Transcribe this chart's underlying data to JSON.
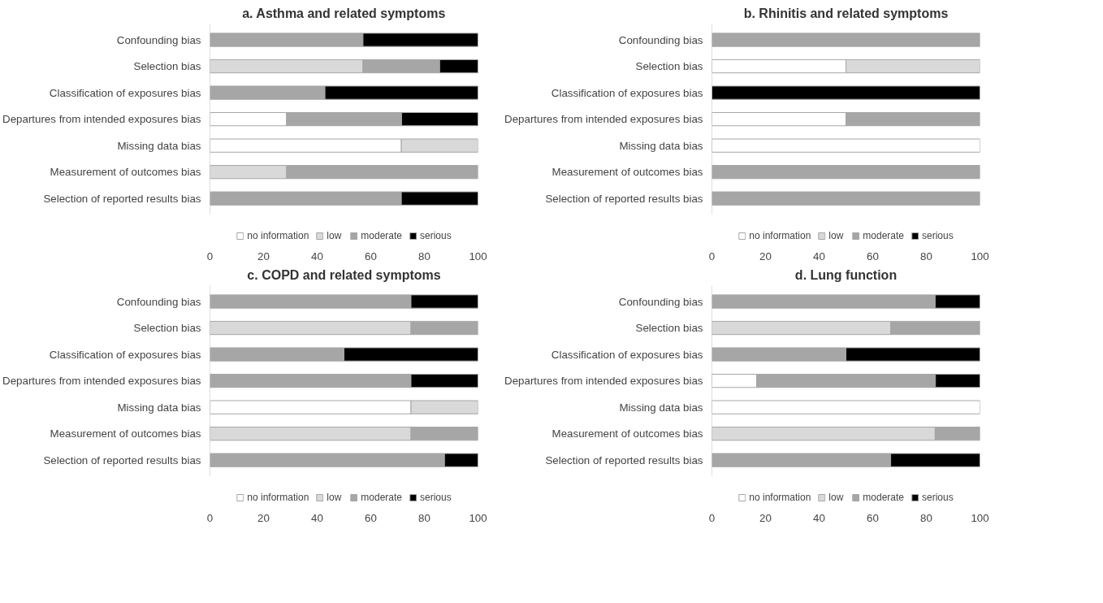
{
  "chart_data": [
    {
      "type": "bar",
      "orientation": "horizontal",
      "stacked": true,
      "title": "a. Asthma and related symptoms",
      "categories": [
        "Confounding bias",
        "Selection bias",
        "Classification of exposures bias",
        "Departures from intended exposures bias",
        "Missing data bias",
        "Measurement of outcomes bias",
        "Selection of reported results bias"
      ],
      "xlim": [
        0,
        100
      ],
      "xticks": [
        0,
        20,
        40,
        60,
        80,
        100
      ],
      "legend": "bottom",
      "grid": false,
      "series": [
        {
          "name": "no information",
          "color": "#ffffff",
          "values": [
            0,
            0,
            0,
            28.6,
            71.4,
            0,
            0
          ]
        },
        {
          "name": "low",
          "color": "#d9d9d9",
          "values": [
            0,
            57.1,
            0,
            0,
            28.6,
            28.6,
            0
          ]
        },
        {
          "name": "moderate",
          "color": "#a6a6a6",
          "values": [
            57.1,
            28.6,
            42.9,
            42.9,
            0,
            71.4,
            71.4
          ]
        },
        {
          "name": "serious",
          "color": "#000000",
          "values": [
            42.9,
            14.3,
            57.1,
            28.6,
            0,
            0,
            28.6
          ]
        }
      ]
    },
    {
      "type": "bar",
      "orientation": "horizontal",
      "stacked": true,
      "title": "b. Rhinitis and related symptoms",
      "categories": [
        "Confounding bias",
        "Selection bias",
        "Classification of exposures bias",
        "Departures from intended exposures bias",
        "Missing data bias",
        "Measurement of outcomes bias",
        "Selection of reported results bias"
      ],
      "xlim": [
        0,
        100
      ],
      "xticks": [
        0,
        20,
        40,
        60,
        80,
        100
      ],
      "legend": "bottom",
      "grid": false,
      "series": [
        {
          "name": "no information",
          "color": "#ffffff",
          "values": [
            0,
            50,
            0,
            50,
            100,
            0,
            0
          ]
        },
        {
          "name": "low",
          "color": "#d9d9d9",
          "values": [
            0,
            50,
            0,
            0,
            0,
            0,
            0
          ]
        },
        {
          "name": "moderate",
          "color": "#a6a6a6",
          "values": [
            100,
            0,
            0,
            50,
            0,
            100,
            100
          ]
        },
        {
          "name": "serious",
          "color": "#000000",
          "values": [
            0,
            0,
            100,
            0,
            0,
            0,
            0
          ]
        }
      ]
    },
    {
      "type": "bar",
      "orientation": "horizontal",
      "stacked": true,
      "title": "c. COPD and related symptoms",
      "categories": [
        "Confounding bias",
        "Selection bias",
        "Classification of exposures bias",
        "Departures from intended exposures bias",
        "Missing data bias",
        "Measurement of outcomes bias",
        "Selection of reported results bias"
      ],
      "xlim": [
        0,
        100
      ],
      "xticks": [
        0,
        20,
        40,
        60,
        80,
        100
      ],
      "legend": "bottom",
      "grid": false,
      "series": [
        {
          "name": "no information",
          "color": "#ffffff",
          "values": [
            0,
            0,
            0,
            0,
            75,
            0,
            0
          ]
        },
        {
          "name": "low",
          "color": "#d9d9d9",
          "values": [
            0,
            75,
            0,
            0,
            25,
            75,
            0
          ]
        },
        {
          "name": "moderate",
          "color": "#a6a6a6",
          "values": [
            75,
            25,
            50,
            75,
            0,
            25,
            87.5
          ]
        },
        {
          "name": "serious",
          "color": "#000000",
          "values": [
            25,
            0,
            50,
            25,
            0,
            0,
            12.5
          ]
        }
      ]
    },
    {
      "type": "bar",
      "orientation": "horizontal",
      "stacked": true,
      "title": "d. Lung function",
      "categories": [
        "Confounding bias",
        "Selection bias",
        "Classification of exposures bias",
        "Departures from intended exposures bias",
        "Missing data bias",
        "Measurement of outcomes bias",
        "Selection of reported results bias"
      ],
      "xlim": [
        0,
        100
      ],
      "xticks": [
        0,
        20,
        40,
        60,
        80,
        100
      ],
      "legend": "bottom",
      "grid": false,
      "series": [
        {
          "name": "no information",
          "color": "#ffffff",
          "values": [
            0,
            0,
            0,
            16.7,
            100,
            0,
            0
          ]
        },
        {
          "name": "low",
          "color": "#d9d9d9",
          "values": [
            0,
            66.7,
            0,
            0,
            0,
            83.3,
            0
          ]
        },
        {
          "name": "moderate",
          "color": "#a6a6a6",
          "values": [
            83.3,
            33.3,
            50,
            66.7,
            0,
            16.7,
            66.7
          ]
        },
        {
          "name": "serious",
          "color": "#000000",
          "values": [
            16.7,
            0,
            50,
            16.7,
            0,
            0,
            33.3
          ]
        }
      ]
    }
  ]
}
